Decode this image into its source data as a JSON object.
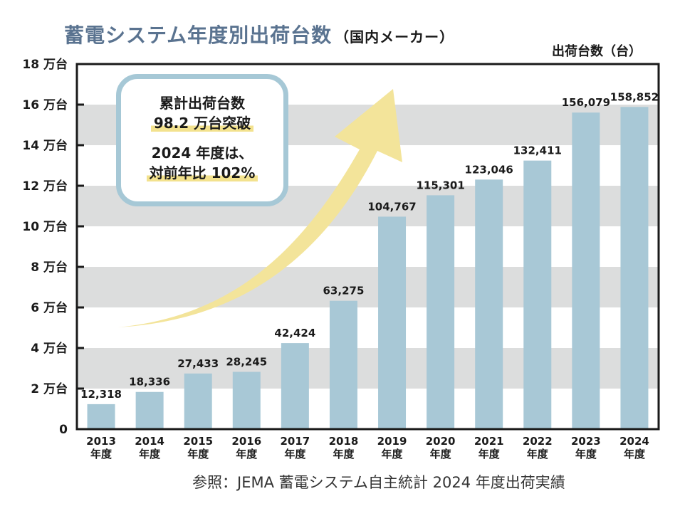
{
  "title": "蓄電システム年度別出荷台数",
  "subtitle": "（国内メーカー）",
  "unit_label": "出荷台数（台）",
  "source": "参照：JEMA 蓄電システム自主統計 2024 年度出荷実績",
  "callout": {
    "line1": "累計出荷台数",
    "line2": "98.2 万台突破",
    "line3": "2024 年度は、",
    "line4": "対前年比 102%"
  },
  "colors": {
    "bar": "#a8c8d6",
    "band": "#dcdddd",
    "arrow": "#f3e49a",
    "title": "#5a7390",
    "callout_border": "#a6c8d6"
  },
  "chart_data": {
    "type": "bar",
    "categories": [
      "2013\n年度",
      "2014\n年度",
      "2015\n年度",
      "2016\n年度",
      "2017\n年度",
      "2018\n年度",
      "2019\n年度",
      "2020\n年度",
      "2021\n年度",
      "2022\n年度",
      "2023\n年度",
      "2024\n年度"
    ],
    "values": [
      12318,
      18336,
      27433,
      28245,
      42424,
      63275,
      104767,
      115301,
      123046,
      132411,
      156079,
      158852
    ],
    "value_labels": [
      "12,318",
      "18,336",
      "27,433",
      "28,245",
      "42,424",
      "63,275",
      "104,767",
      "115,301",
      "123,046",
      "132,411",
      "156,079",
      "158,852"
    ],
    "ylim": [
      0,
      180000
    ],
    "yticks": [
      0,
      20000,
      40000,
      60000,
      80000,
      100000,
      120000,
      140000,
      160000,
      180000
    ],
    "ytick_labels": [
      "0",
      "2 万台",
      "4 万台",
      "6 万台",
      "8 万台",
      "10 万台",
      "12 万台",
      "14 万台",
      "16 万台",
      "18 万台"
    ],
    "grid": "alternating-bands",
    "legend": "none"
  }
}
